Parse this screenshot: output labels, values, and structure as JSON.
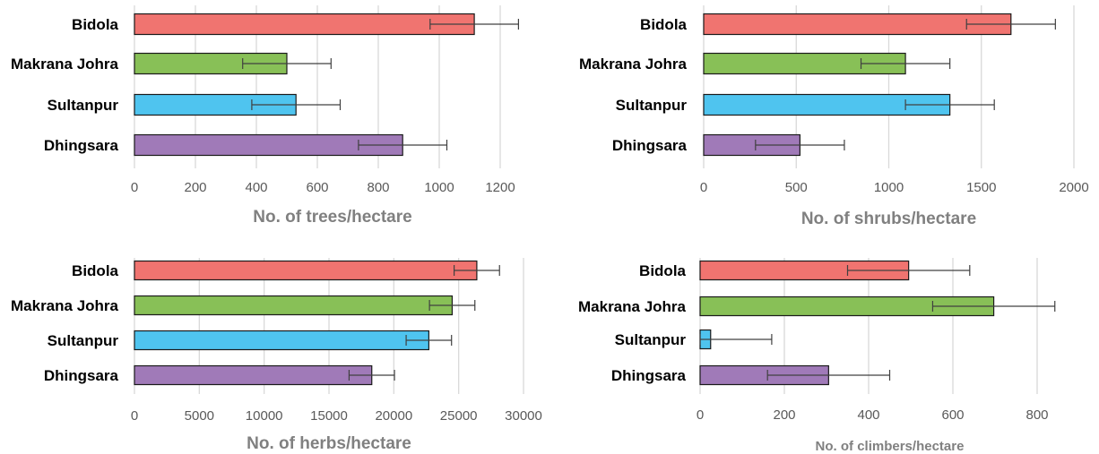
{
  "chart_data": [
    {
      "type": "bar",
      "orientation": "horizontal",
      "categories": [
        "Bidola",
        "Makrana Johra",
        "Sultanpur",
        "Dhingsara"
      ],
      "values": [
        1115,
        500,
        530,
        880
      ],
      "errors": [
        145,
        145,
        145,
        145
      ],
      "colors": [
        "#f07470",
        "#88c057",
        "#4fc4ef",
        "#a07ab8"
      ],
      "xlim": [
        0,
        1300
      ],
      "ticks": [
        0,
        200,
        400,
        600,
        800,
        1000,
        1200
      ],
      "tick_labels": [
        "0",
        "200",
        "400",
        "600",
        "800",
        "1000",
        "1200"
      ],
      "xlabel": "No. of trees/hectare",
      "grid": true
    },
    {
      "type": "bar",
      "orientation": "horizontal",
      "categories": [
        "Bidola",
        "Makrana Johra",
        "Sultanpur",
        "Dhingsara"
      ],
      "values": [
        1660,
        1090,
        1330,
        520
      ],
      "errors": [
        240,
        240,
        240,
        240
      ],
      "colors": [
        "#f07470",
        "#88c057",
        "#4fc4ef",
        "#a07ab8"
      ],
      "xlim": [
        0,
        2000
      ],
      "ticks": [
        0,
        500,
        1000,
        1500,
        2000
      ],
      "tick_labels": [
        "0",
        "500",
        "1000",
        "1500",
        "2000"
      ],
      "xlabel": "No. of shrubs/hectare",
      "grid": true
    },
    {
      "type": "bar",
      "orientation": "horizontal",
      "categories": [
        "Bidola",
        "Makrana Johra",
        "Sultanpur",
        "Dhingsara"
      ],
      "values": [
        26400,
        24500,
        22700,
        18300
      ],
      "errors": [
        1750,
        1750,
        1750,
        1750
      ],
      "colors": [
        "#f07470",
        "#88c057",
        "#4fc4ef",
        "#a07ab8"
      ],
      "xlim": [
        0,
        30000
      ],
      "ticks": [
        0,
        5000,
        10000,
        15000,
        20000,
        25000,
        30000
      ],
      "tick_labels": [
        "0",
        "5000",
        "10000",
        "15000",
        "20000",
        "25000",
        "30000"
      ],
      "xlabel": "No. of herbs/hectare",
      "grid": true
    },
    {
      "type": "bar",
      "orientation": "horizontal",
      "categories": [
        "Bidola",
        "Makrana Johra",
        "Sultanpur",
        "Dhingsara"
      ],
      "values": [
        495,
        697,
        25,
        305
      ],
      "errors": [
        145,
        145,
        145,
        145
      ],
      "colors": [
        "#f07470",
        "#88c057",
        "#4fc4ef",
        "#a07ab8"
      ],
      "xlim": [
        0,
        900
      ],
      "ticks": [
        0,
        200,
        400,
        600,
        800
      ],
      "tick_labels": [
        "0",
        "200",
        "400",
        "600",
        "800"
      ],
      "xlabel": "No. of climbers/hectare",
      "grid": true
    }
  ]
}
